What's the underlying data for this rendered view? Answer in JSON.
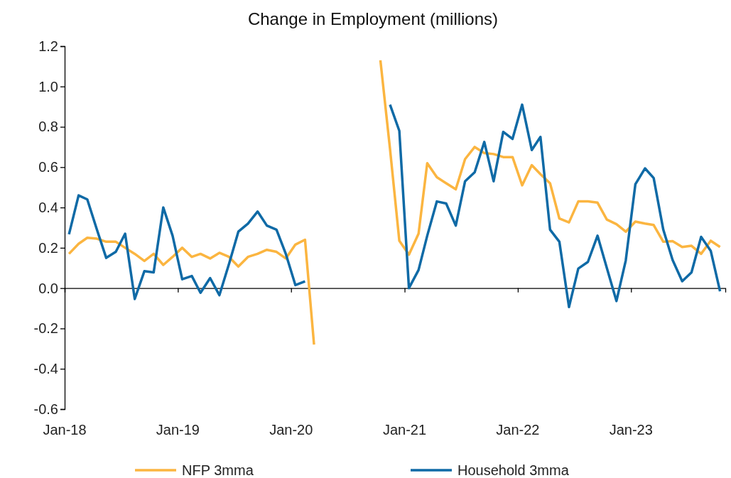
{
  "chart_data": {
    "type": "line",
    "title": "Change in Employment (millions)",
    "x": [
      "2018-01-15",
      "2018-02-15",
      "2018-03-15",
      "2018-04-15",
      "2018-05-15",
      "2018-06-15",
      "2018-07-15",
      "2018-08-15",
      "2018-09-15",
      "2018-10-15",
      "2018-11-15",
      "2018-12-15",
      "2019-01-15",
      "2019-02-15",
      "2019-03-15",
      "2019-04-15",
      "2019-05-15",
      "2019-06-15",
      "2019-07-15",
      "2019-08-15",
      "2019-09-15",
      "2019-10-15",
      "2019-11-15",
      "2019-12-15",
      "2020-01-15",
      "2020-02-15",
      "2020-03-15",
      "2020-04-15",
      "2020-05-15",
      "2020-06-15",
      "2020-07-15",
      "2020-08-15",
      "2020-09-15",
      "2020-10-15",
      "2020-11-15",
      "2020-12-15",
      "2021-01-15",
      "2021-02-15",
      "2021-03-15",
      "2021-04-15",
      "2021-05-15",
      "2021-06-15",
      "2021-07-15",
      "2021-08-15",
      "2021-09-15",
      "2021-10-15",
      "2021-11-15",
      "2021-12-15",
      "2022-01-15",
      "2022-02-15",
      "2022-03-15",
      "2022-04-15",
      "2022-05-15",
      "2022-06-15",
      "2022-07-15",
      "2022-08-15",
      "2022-09-15",
      "2022-10-15",
      "2022-11-15",
      "2022-12-15",
      "2023-01-15",
      "2023-02-15",
      "2023-03-15",
      "2023-04-15",
      "2023-05-15",
      "2023-06-15",
      "2023-07-15",
      "2023-08-15",
      "2023-09-15",
      "2023-10-15"
    ],
    "series": [
      {
        "name": "NFP 3mma",
        "color": "#fbb540",
        "values": [
          0.17,
          0.22,
          0.25,
          0.245,
          0.23,
          0.23,
          0.2,
          0.17,
          0.135,
          0.17,
          0.115,
          0.155,
          0.2,
          0.155,
          0.17,
          0.147,
          0.175,
          0.155,
          0.107,
          0.155,
          0.17,
          0.19,
          0.18,
          0.147,
          0.216,
          0.24,
          -0.28,
          null,
          null,
          null,
          null,
          null,
          null,
          1.13,
          0.69,
          0.235,
          0.166,
          0.27,
          0.62,
          0.55,
          0.52,
          0.49,
          0.64,
          0.7,
          0.67,
          0.665,
          0.65,
          0.65,
          0.51,
          0.61,
          0.565,
          0.52,
          0.345,
          0.326,
          0.43,
          0.43,
          0.424,
          0.34,
          0.317,
          0.28,
          0.33,
          0.32,
          0.313,
          0.23,
          0.233,
          0.204,
          0.21,
          0.17,
          0.235,
          0.204
        ]
      },
      {
        "name": "Household 3mma",
        "color": "#0f6aa6",
        "values": [
          0.267,
          0.46,
          0.44,
          0.29,
          0.15,
          0.18,
          0.27,
          -0.054,
          0.084,
          0.078,
          0.4,
          0.26,
          0.044,
          0.06,
          -0.023,
          0.05,
          -0.035,
          0.12,
          0.28,
          0.32,
          0.38,
          0.31,
          0.29,
          0.17,
          0.015,
          0.034,
          null,
          null,
          null,
          null,
          null,
          null,
          null,
          null,
          0.91,
          0.78,
          0.0,
          0.09,
          0.26,
          0.43,
          0.42,
          0.31,
          0.53,
          0.575,
          0.725,
          0.53,
          0.775,
          0.74,
          0.91,
          0.685,
          0.75,
          0.29,
          0.23,
          -0.094,
          0.097,
          0.13,
          0.26,
          0.1,
          -0.064,
          0.137,
          0.515,
          0.594,
          0.546,
          0.29,
          0.14,
          0.034,
          0.078,
          0.254,
          0.185,
          -0.016
        ]
      }
    ],
    "xlim": [
      "2018-01-01",
      "2023-11-01"
    ],
    "xticks": [
      {
        "value": "2018-01-01",
        "label": "Jan-18"
      },
      {
        "value": "2019-01-01",
        "label": "Jan-19"
      },
      {
        "value": "2020-01-01",
        "label": "Jan-20"
      },
      {
        "value": "2021-01-01",
        "label": "Jan-21"
      },
      {
        "value": "2022-01-01",
        "label": "Jan-22"
      },
      {
        "value": "2023-01-01",
        "label": "Jan-23"
      }
    ],
    "ylim": [
      -0.6,
      1.2
    ],
    "yticks": [
      {
        "value": -0.6,
        "label": "-0.6"
      },
      {
        "value": -0.4,
        "label": "-0.4"
      },
      {
        "value": -0.2,
        "label": "-0.2"
      },
      {
        "value": 0,
        "label": "0.0"
      },
      0.2,
      0.4,
      0.6,
      0.8,
      {
        "value": 1,
        "label": "1.0"
      },
      1.2
    ],
    "grid": false,
    "legend": "bottom",
    "marker": "none",
    "line_style": "solid"
  }
}
